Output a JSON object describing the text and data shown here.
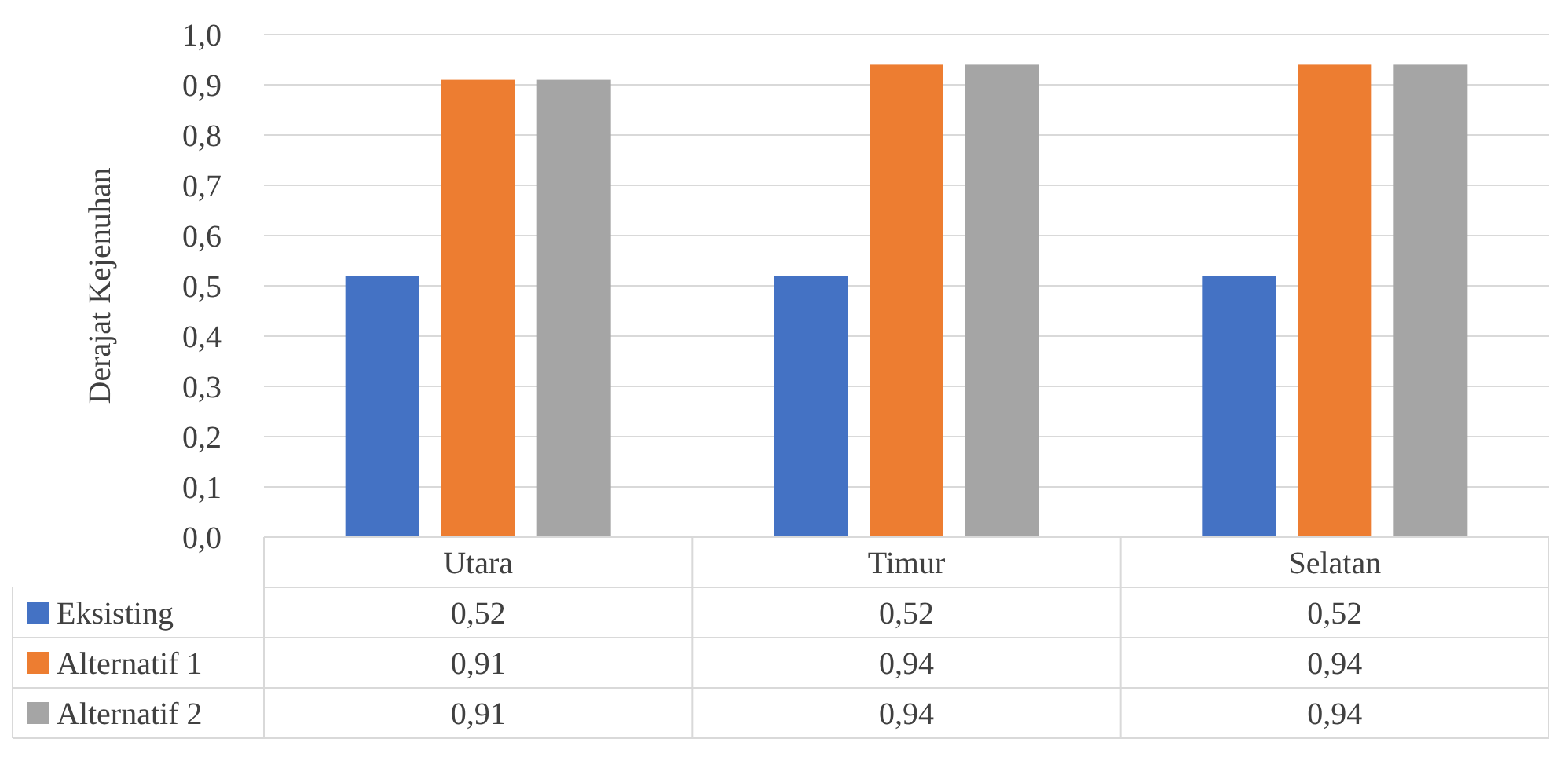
{
  "chart_data": {
    "type": "bar",
    "ylabel": "Derajat Kejenuhan",
    "categories": [
      "Utara",
      "Timur",
      "Selatan"
    ],
    "series": [
      {
        "name": "Eksisting",
        "color": "#4472c4",
        "values": [
          0.52,
          0.52,
          0.52
        ],
        "value_labels": [
          "0,52",
          "0,52",
          "0,52"
        ]
      },
      {
        "name": "Alternatif 1",
        "color": "#ed7d31",
        "values": [
          0.91,
          0.94,
          0.94
        ],
        "value_labels": [
          "0,91",
          "0,94",
          "0,94"
        ]
      },
      {
        "name": "Alternatif 2",
        "color": "#a5a5a5",
        "values": [
          0.91,
          0.94,
          0.94
        ],
        "value_labels": [
          "0,91",
          "0,94",
          "0,94"
        ]
      }
    ],
    "ylim": [
      0,
      1
    ],
    "yticks": [
      {
        "value": 0,
        "label": "0,0"
      },
      {
        "value": 0.1,
        "label": "0,1"
      },
      {
        "value": 0.2,
        "label": "0,2"
      },
      {
        "value": 0.3,
        "label": "0,3"
      },
      {
        "value": 0.4,
        "label": "0,4"
      },
      {
        "value": 0.5,
        "label": "0,5"
      },
      {
        "value": 0.6,
        "label": "0,6"
      },
      {
        "value": 0.7,
        "label": "0,7"
      },
      {
        "value": 0.8,
        "label": "0,8"
      },
      {
        "value": 0.9,
        "label": "0,9"
      },
      {
        "value": 1,
        "label": "1,0"
      }
    ],
    "grid": "y",
    "legend": "bottom"
  }
}
